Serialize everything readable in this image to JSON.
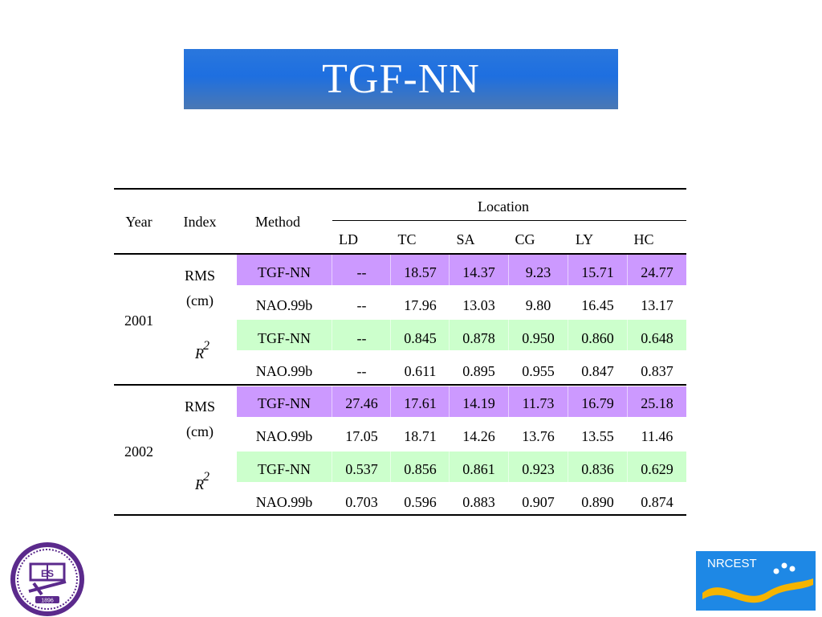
{
  "title": "TGF-NN",
  "table": {
    "header": {
      "year": "Year",
      "index": "Index",
      "method": "Method",
      "location": "Location",
      "locations": [
        "LD",
        "TC",
        "SA",
        "CG",
        "LY",
        "HC"
      ]
    },
    "groups": [
      {
        "year": "2001",
        "index_rms_line1": "RMS",
        "index_rms_line2": "(cm)",
        "index_r2": "R",
        "index_r2_sup": "2",
        "rows": [
          {
            "method": "TGF-NN",
            "values": [
              "--",
              "18.57",
              "14.37",
              "9.23",
              "15.71",
              "24.77"
            ],
            "highlight": "purple"
          },
          {
            "method": "NAO.99b",
            "values": [
              "--",
              "17.96",
              "13.03",
              "9.80",
              "16.45",
              "13.17"
            ],
            "highlight": "none"
          },
          {
            "method": "TGF-NN",
            "values": [
              "--",
              "0.845",
              "0.878",
              "0.950",
              "0.860",
              "0.648"
            ],
            "highlight": "green"
          },
          {
            "method": "NAO.99b",
            "values": [
              "--",
              "0.611",
              "0.895",
              "0.955",
              "0.847",
              "0.837"
            ],
            "highlight": "none"
          }
        ]
      },
      {
        "year": "2002",
        "index_rms_line1": "RMS",
        "index_rms_line2": "(cm)",
        "index_r2": "R",
        "index_r2_sup": "2",
        "rows": [
          {
            "method": "TGF-NN",
            "values": [
              "27.46",
              "17.61",
              "14.19",
              "11.73",
              "16.79",
              "25.18"
            ],
            "highlight": "purple"
          },
          {
            "method": "NAO.99b",
            "values": [
              "17.05",
              "18.71",
              "14.26",
              "13.76",
              "13.55",
              "11.46"
            ],
            "highlight": "none"
          },
          {
            "method": "TGF-NN",
            "values": [
              "0.537",
              "0.856",
              "0.861",
              "0.923",
              "0.836",
              "0.629"
            ],
            "highlight": "green"
          },
          {
            "method": "NAO.99b",
            "values": [
              "0.703",
              "0.596",
              "0.883",
              "0.907",
              "0.890",
              "0.874"
            ],
            "highlight": "none"
          }
        ]
      }
    ]
  },
  "logos": {
    "left_year": "1896",
    "left_letters": "ES",
    "right_text": "NRCEST"
  },
  "colors": {
    "title_blue": "#1e6fe0",
    "purple_band": "#cc99ff",
    "green_band": "#ccffcc",
    "logo_purple": "#5b2a8c",
    "logo_blue": "#1e88e5",
    "logo_yellow": "#f5b400"
  }
}
